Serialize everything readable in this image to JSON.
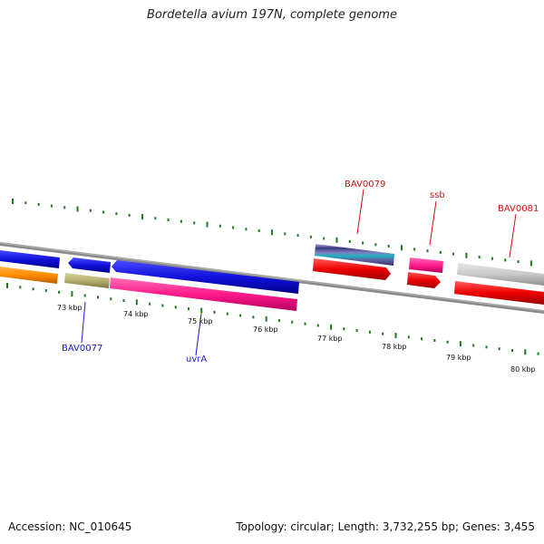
{
  "title": "Bordetella avium 197N, complete genome",
  "accession": "Accession: NC_010645",
  "summary": "Topology: circular; Length: 3,732,255 bp; Genes: 3,455",
  "colors": {
    "backbone": "#8a8a8a",
    "tick": "#1f7a1f",
    "blue_label": "#1a1acc",
    "red_label": "#cc1111"
  },
  "ticks": [
    {
      "label": "73 kbp"
    },
    {
      "label": "74 kbp"
    },
    {
      "label": "75 kbp"
    },
    {
      "label": "76 kbp"
    },
    {
      "label": "77 kbp"
    },
    {
      "label": "78 kbp"
    },
    {
      "label": "79 kbp"
    },
    {
      "label": "80 kbp"
    }
  ],
  "gene_labels": [
    {
      "name": "BAV0077",
      "color": "blue"
    },
    {
      "name": "uvrA",
      "color": "blue"
    },
    {
      "name": "BAV0079",
      "color": "red"
    },
    {
      "name": "ssb",
      "color": "red"
    },
    {
      "name": "BAV0081",
      "color": "red"
    }
  ],
  "genes": [
    {
      "name": "gene-blue-1",
      "color": "#1111dd"
    },
    {
      "name": "gene-blue-2",
      "color": "#1111dd"
    },
    {
      "name": "gene-blue-3",
      "color": "#1111dd"
    },
    {
      "name": "gene-orange",
      "color": "#ff8c00"
    },
    {
      "name": "gene-olive",
      "color": "#b5b070"
    },
    {
      "name": "gene-pink",
      "color": "#ff1a8c"
    },
    {
      "name": "gene-striped",
      "color": "#6a5a9a"
    },
    {
      "name": "gene-red-1",
      "color": "#ee0000"
    },
    {
      "name": "gene-pink-2",
      "color": "#ff1a8c"
    },
    {
      "name": "gene-red-2",
      "color": "#ee0000"
    },
    {
      "name": "gene-grey",
      "color": "#c8c8c8"
    },
    {
      "name": "gene-red-3",
      "color": "#ee0000"
    }
  ]
}
